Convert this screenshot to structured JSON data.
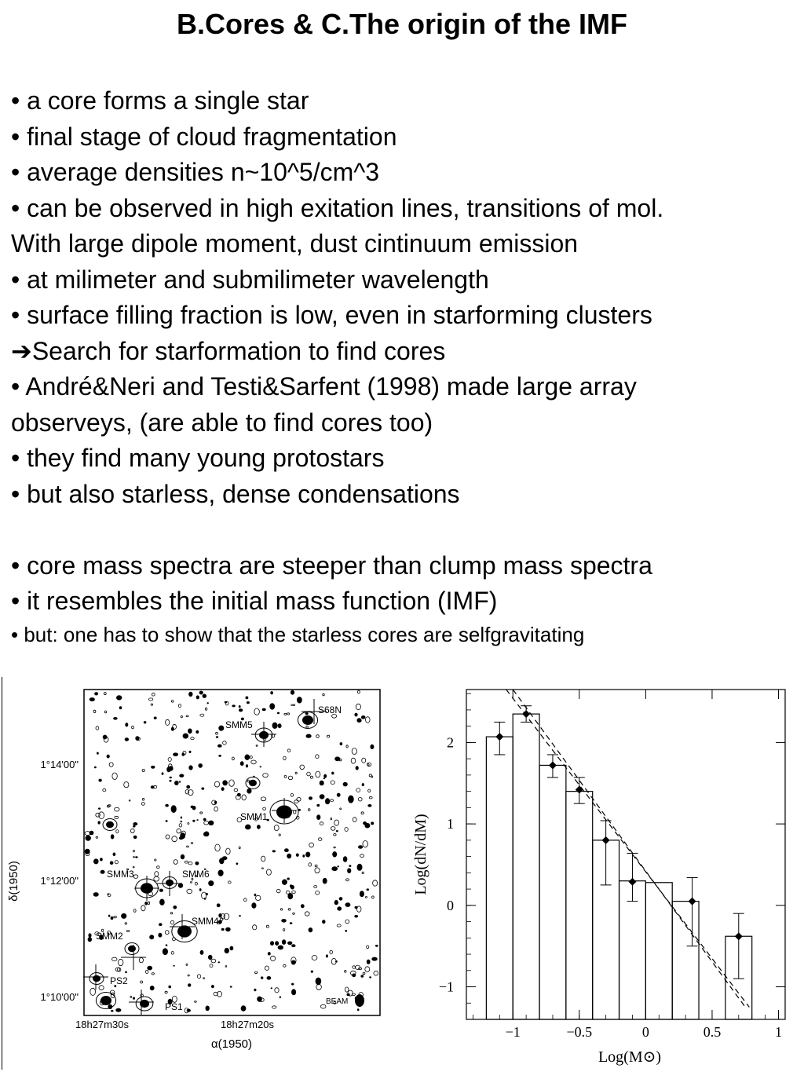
{
  "title": "B.Cores  &  C.The origin of the IMF",
  "bullets": [
    {
      "text": "• a core forms a single star"
    },
    {
      "text": "• final stage of cloud fragmentation"
    },
    {
      "text": "• average densities n~10^5/cm^3"
    },
    {
      "text": "• can be observed in high exitation lines, transitions of mol."
    },
    {
      "text": "With large dipole moment, dust cintinuum emission"
    },
    {
      "text": "• at milimeter and submilimeter wavelength"
    },
    {
      "text": "• surface filling fraction is low, even in starforming clusters"
    },
    {
      "text": "➔Search for starformation to find cores"
    },
    {
      "text": "• André&Neri and Testi&Sarfent (1998) made large array"
    },
    {
      "text": "observeys, (are able to find cores too)"
    },
    {
      "text": "• they find many young protostars"
    },
    {
      "text": "• but  also starless, dense condensations"
    },
    {
      "text": ""
    },
    {
      "text": "• core mass spectra are steeper than clump mass spectra"
    },
    {
      "text": "• it resembles the initial mass function (IMF)"
    },
    {
      "text": "• but: one has to show that the starless cores are selfgravitating",
      "small": true
    }
  ],
  "map": {
    "ylabel": "δ(1950)",
    "xlabel": "α(1950)",
    "yticks": [
      "1°14'00\"",
      "1°12'00\"",
      "1°10'00\""
    ],
    "xticks": [
      "18h27m30s",
      "18h27m20s"
    ],
    "sources": [
      "S68N",
      "SMM5",
      "SMM1",
      "SMM3",
      "SMM6",
      "SMM4",
      "SMM2",
      "PS2",
      "PS1"
    ],
    "beam_label": "BEAM"
  },
  "chart_data": {
    "type": "histogram",
    "xlabel": "Log(M⊙)",
    "ylabel": "Log(dN/dM)",
    "xlim": [
      -1.35,
      1.05
    ],
    "ylim": [
      -1.4,
      2.65
    ],
    "xticks": [
      -1,
      -0.5,
      0,
      0.5,
      1
    ],
    "xtick_labels": [
      "−1",
      "−0.5",
      "0",
      "0.5",
      "1"
    ],
    "yticks": [
      -1,
      0,
      1,
      2
    ],
    "ytick_labels": [
      "−1",
      "0",
      "1",
      "2"
    ],
    "bins": [
      {
        "x0": -1.2,
        "x1": -1.0,
        "y": 2.07
      },
      {
        "x0": -1.0,
        "x1": -0.8,
        "y": 2.35
      },
      {
        "x0": -0.8,
        "x1": -0.6,
        "y": 1.72
      },
      {
        "x0": -0.6,
        "x1": -0.4,
        "y": 1.4
      },
      {
        "x0": -0.4,
        "x1": -0.2,
        "y": 0.8
      },
      {
        "x0": -0.2,
        "x1": 0.0,
        "y": 0.3
      },
      {
        "x0": 0.0,
        "x1": 0.2,
        "y": 0.28
      },
      {
        "x0": 0.2,
        "x1": 0.4,
        "y": 0.05
      },
      {
        "x0": 0.6,
        "x1": 0.8,
        "y": -0.38
      }
    ],
    "points": [
      {
        "x": -1.1,
        "y": 2.07,
        "lo": 1.85,
        "hi": 2.25
      },
      {
        "x": -0.9,
        "y": 2.35,
        "lo": 2.25,
        "hi": 2.45
      },
      {
        "x": -0.7,
        "y": 1.72,
        "lo": 1.57,
        "hi": 1.85
      },
      {
        "x": -0.5,
        "y": 1.42,
        "lo": 1.25,
        "hi": 1.57
      },
      {
        "x": -0.3,
        "y": 0.8,
        "lo": 0.25,
        "hi": 1.04
      },
      {
        "x": -0.1,
        "y": 0.29,
        "lo": 0.05,
        "hi": 0.64
      },
      {
        "x": 0.35,
        "y": 0.05,
        "lo": -0.5,
        "hi": 0.34
      },
      {
        "x": 0.7,
        "y": -0.38,
        "lo": -0.9,
        "hi": -0.1
      }
    ],
    "fits": [
      {
        "x0": -1.05,
        "y0": 2.65,
        "x1": 0.78,
        "y1": -1.25
      },
      {
        "x0": -1.0,
        "y0": 2.65,
        "x1": 0.75,
        "y1": -1.25
      }
    ]
  }
}
